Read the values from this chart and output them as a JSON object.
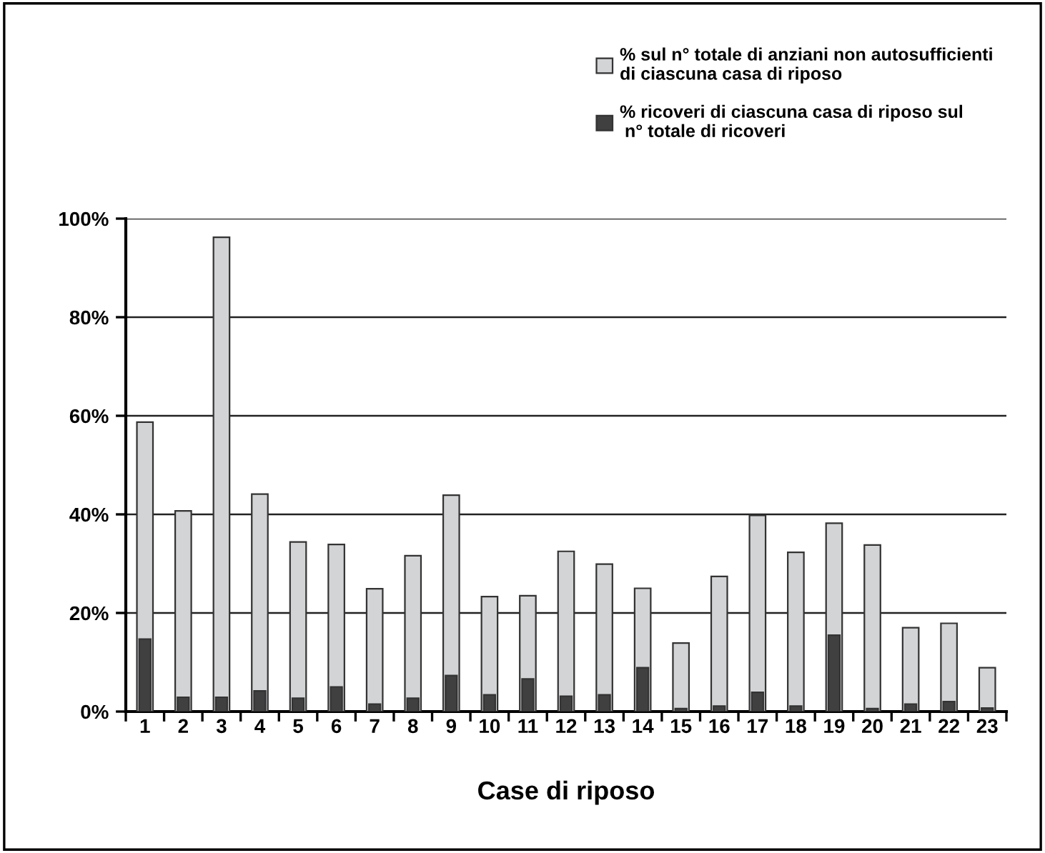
{
  "chart_data": {
    "type": "bar",
    "xlabel": "Case di riposo",
    "categories": [
      "1",
      "2",
      "3",
      "4",
      "5",
      "6",
      "7",
      "8",
      "9",
      "10",
      "11",
      "12",
      "13",
      "14",
      "15",
      "16",
      "17",
      "18",
      "19",
      "20",
      "21",
      "22",
      "23"
    ],
    "series": [
      {
        "name": "% sul n° totale di anziani non autosufficienti\ndi ciascuna casa di riposo",
        "color": "#d3d4d6",
        "values": [
          58.7,
          40.7,
          96.2,
          44.1,
          34.4,
          33.9,
          24.9,
          31.6,
          43.9,
          23.3,
          23.5,
          32.5,
          29.9,
          25.0,
          13.9,
          27.4,
          39.8,
          32.3,
          38.2,
          33.8,
          17.0,
          17.9,
          8.9
        ]
      },
      {
        "name": "% ricoveri di ciascuna casa di riposo sul\n n° totale di ricoveri",
        "color": "#404040",
        "values": [
          14.7,
          2.9,
          2.9,
          4.2,
          2.7,
          5.0,
          1.5,
          2.7,
          7.3,
          3.4,
          6.6,
          3.1,
          3.4,
          8.9,
          0.6,
          1.1,
          3.9,
          1.1,
          15.5,
          0.6,
          1.5,
          2.0,
          0.7
        ]
      }
    ],
    "ylim": [
      0,
      100
    ],
    "yticks": [
      {
        "value": 0,
        "label": "0%"
      },
      {
        "value": 20,
        "label": "20%"
      },
      {
        "value": 40,
        "label": "40%"
      },
      {
        "value": 60,
        "label": "60%"
      },
      {
        "value": 80,
        "label": "80%"
      },
      {
        "value": 100,
        "label": "100%"
      }
    ],
    "grid": "y",
    "legend": "top right"
  }
}
